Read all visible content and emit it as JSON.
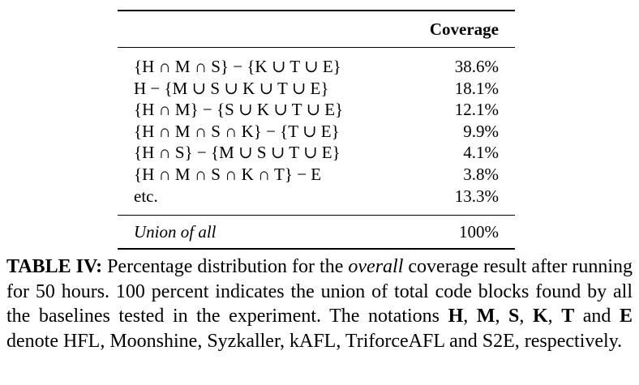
{
  "table": {
    "header": {
      "label_col": "",
      "value_col": "Coverage"
    },
    "rows": [
      {
        "label": "{H ∩ M ∩ S} − {K ∪ T ∪ E}",
        "value": "38.6%"
      },
      {
        "label": "H − {M ∪ S ∪ K ∪ T ∪ E}",
        "value": "18.1%"
      },
      {
        "label": "{H ∩ M} − {S ∪ K ∪ T ∪ E}",
        "value": "12.1%"
      },
      {
        "label": "{H ∩ M ∩ S ∩ K} − {T ∪ E}",
        "value": "9.9%"
      },
      {
        "label": "{H ∩ S} − {M ∪ S ∪ T ∪ E}",
        "value": "4.1%"
      },
      {
        "label": "{H ∩ M ∩ S ∩ K ∩ T} − E",
        "value": "3.8%"
      },
      {
        "label": "etc.",
        "value": "13.3%"
      }
    ],
    "union": {
      "label": "Union of all",
      "value": "100%"
    }
  },
  "caption": {
    "label": "TABLE IV:",
    "part1": " Percentage distribution for the ",
    "emph": "overall",
    "part2": " coverage result after running for 50 hours. 100 percent indicates the union of total code blocks found by all the baselines tested in the experiment. The notations ",
    "n_h": "H",
    "sep1": ", ",
    "n_m": "M",
    "sep2": ", ",
    "n_s": "S",
    "sep3": ", ",
    "n_k": "K",
    "sep4": ", ",
    "n_t": "T",
    "sep5": " and ",
    "n_e": "E",
    "part3": " denote HFL, Moonshine, Syzkaller, kAFL, TriforceAFL and S2E, respectively."
  }
}
